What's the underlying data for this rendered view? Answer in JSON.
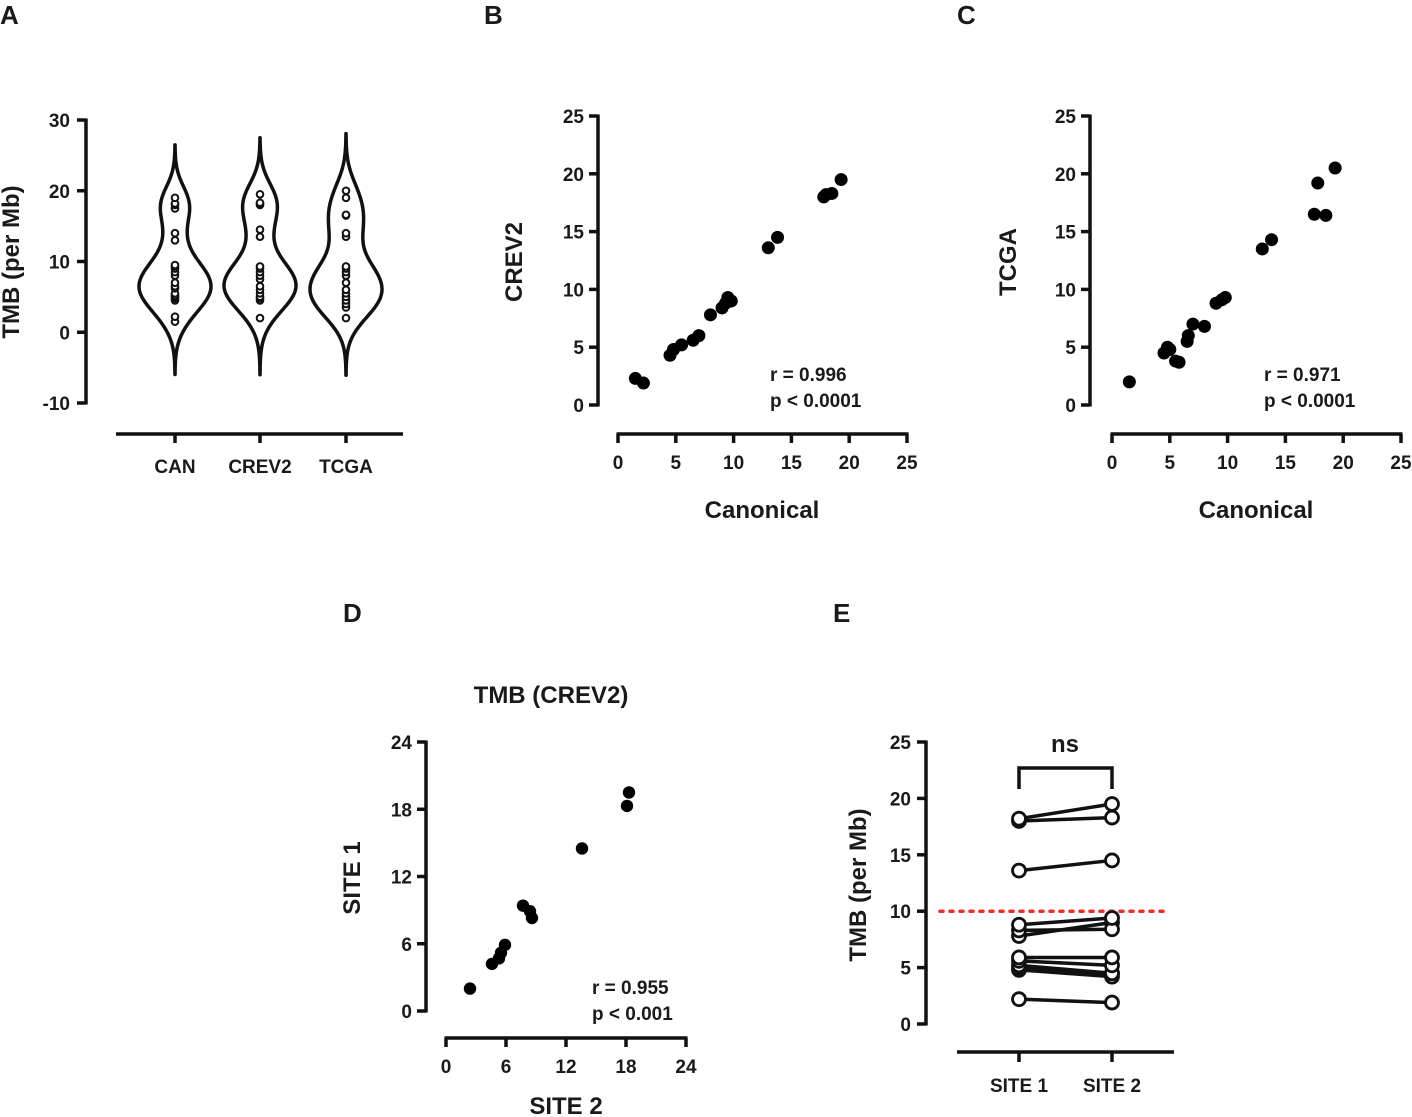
{
  "panels": {
    "A": {
      "letter": "A"
    },
    "B": {
      "letter": "B"
    },
    "C": {
      "letter": "C"
    },
    "D": {
      "letter": "D"
    },
    "E": {
      "letter": "E"
    }
  },
  "chart_data": [
    {
      "id": "A",
      "type": "violin",
      "ylabel": "TMB (per Mb)",
      "ylim": [
        -10,
        30
      ],
      "yticks": [
        -10,
        0,
        10,
        20,
        30
      ],
      "categories": [
        "CAN",
        "CREV2",
        "TCGA"
      ],
      "series": [
        {
          "name": "CAN",
          "values": [
            1.5,
            2.2,
            4.5,
            4.8,
            5.0,
            5.2,
            5.5,
            6.2,
            6.5,
            7.0,
            8.0,
            8.5,
            9.0,
            9.3,
            9.5,
            13.0,
            14.0,
            17.5,
            18.0,
            18.2,
            19.0
          ]
        },
        {
          "name": "CREV2",
          "values": [
            2.0,
            4.5,
            4.8,
            5.0,
            5.5,
            6.0,
            6.5,
            7.5,
            8.0,
            8.5,
            9.0,
            9.3,
            13.5,
            14.5,
            18.0,
            18.2,
            18.3,
            19.5
          ]
        },
        {
          "name": "TCGA",
          "values": [
            2.0,
            3.5,
            4.0,
            4.5,
            5.0,
            5.5,
            6.0,
            7.0,
            8.0,
            8.5,
            9.0,
            9.3,
            13.5,
            14.0,
            16.5,
            16.6,
            19.0,
            20.0
          ]
        }
      ]
    },
    {
      "id": "B",
      "type": "scatter",
      "xlabel": "Canonical",
      "ylabel": "CREV2",
      "xlim": [
        0,
        25
      ],
      "ylim": [
        0,
        25
      ],
      "xticks": [
        0,
        5,
        10,
        15,
        20,
        25
      ],
      "yticks": [
        0,
        5,
        10,
        15,
        20,
        25
      ],
      "x": [
        1.5,
        2.2,
        4.5,
        4.8,
        5.5,
        6.5,
        7.0,
        8.0,
        9.0,
        9.3,
        9.5,
        9.8,
        13.0,
        13.8,
        17.8,
        18.0,
        18.5,
        19.3
      ],
      "y": [
        2.3,
        1.9,
        4.3,
        4.8,
        5.2,
        5.6,
        6.0,
        7.8,
        8.4,
        8.8,
        9.3,
        9.0,
        13.6,
        14.5,
        18.0,
        18.2,
        18.3,
        19.5
      ],
      "annotation": [
        "r = 0.996",
        "p < 0.0001"
      ]
    },
    {
      "id": "C",
      "type": "scatter",
      "xlabel": "Canonical",
      "ylabel": "TCGA",
      "xlim": [
        0,
        25
      ],
      "ylim": [
        0,
        25
      ],
      "xticks": [
        0,
        5,
        10,
        15,
        20,
        25
      ],
      "yticks": [
        0,
        5,
        10,
        15,
        20,
        25
      ],
      "x": [
        1.5,
        4.5,
        5.0,
        4.8,
        5.5,
        5.8,
        6.5,
        6.6,
        7.0,
        8.0,
        9.0,
        9.5,
        9.8,
        13.0,
        13.8,
        17.5,
        17.8,
        18.5,
        19.3
      ],
      "y": [
        2.0,
        4.5,
        4.8,
        5.0,
        3.8,
        3.7,
        5.5,
        6.0,
        7.0,
        6.8,
        8.8,
        9.1,
        9.3,
        13.5,
        14.3,
        16.5,
        19.2,
        16.4,
        20.5
      ],
      "annotation": [
        "r = 0.971",
        "p < 0.0001"
      ]
    },
    {
      "id": "D",
      "type": "scatter",
      "title": "TMB (CREV2)",
      "xlabel": "SITE 2",
      "ylabel": "SITE 1",
      "xlim": [
        0,
        24
      ],
      "ylim": [
        0,
        24
      ],
      "xticks": [
        0,
        6,
        12,
        18,
        24
      ],
      "yticks": [
        0,
        6,
        12,
        18,
        24
      ],
      "x": [
        2.4,
        4.6,
        5.3,
        5.5,
        5.9,
        7.7,
        8.4,
        8.6,
        13.6,
        18.1,
        18.3
      ],
      "y": [
        2.0,
        4.2,
        4.7,
        5.2,
        5.9,
        9.4,
        8.9,
        8.3,
        14.5,
        18.3,
        19.5
      ],
      "annotation": [
        "r = 0.955",
        "p < 0.001"
      ]
    },
    {
      "id": "E",
      "type": "paired",
      "ylabel": "TMB (per Mb)",
      "ylim": [
        0,
        25
      ],
      "yticks": [
        0,
        5,
        10,
        15,
        20,
        25
      ],
      "categories": [
        "SITE 1",
        "SITE 2"
      ],
      "threshold": 10,
      "threshold_color": "#e8302c",
      "significance": "ns",
      "pairs": [
        [
          2.2,
          1.9
        ],
        [
          4.8,
          4.2
        ],
        [
          5.0,
          4.5
        ],
        [
          5.2,
          4.5
        ],
        [
          5.6,
          5.2
        ],
        [
          5.9,
          5.9
        ],
        [
          7.8,
          9.0
        ],
        [
          8.3,
          8.4
        ],
        [
          8.8,
          9.4
        ],
        [
          13.6,
          14.5
        ],
        [
          18.0,
          18.3
        ],
        [
          18.2,
          19.5
        ]
      ]
    }
  ]
}
